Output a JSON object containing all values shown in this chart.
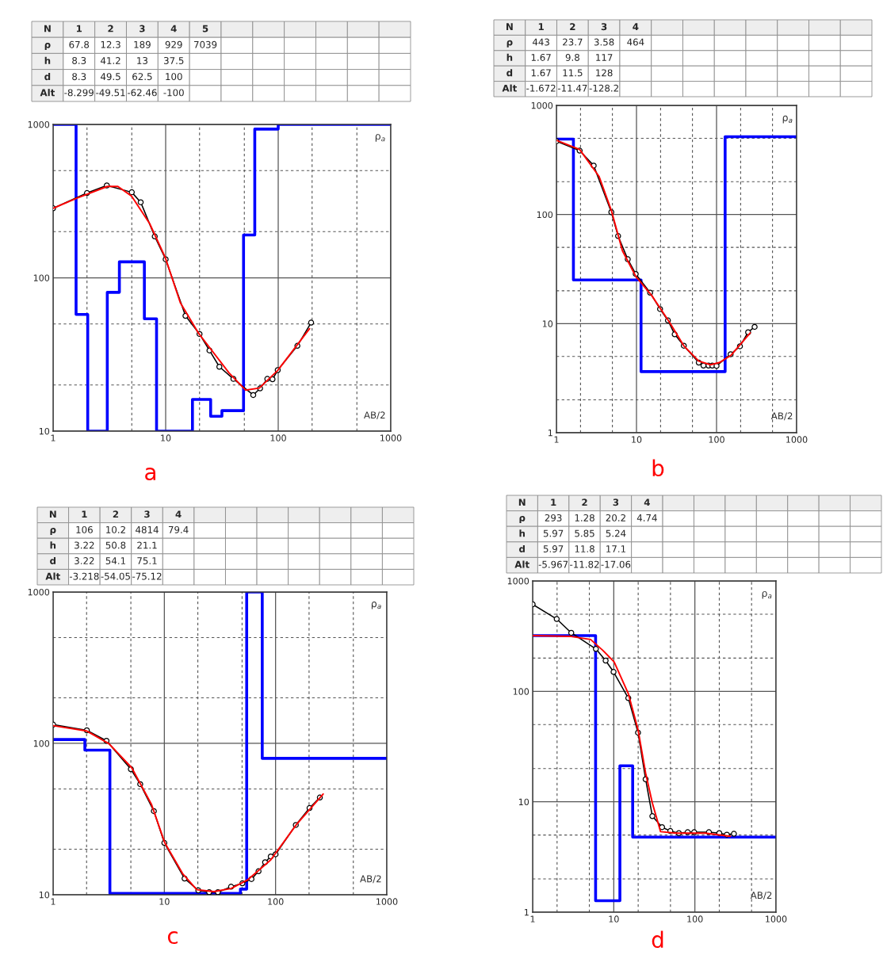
{
  "chart_data": [
    {
      "type": "line",
      "log": "xy",
      "grid": true,
      "xlabel": "AB/2",
      "ylabel": "ρ$_{a}$",
      "xlim": [
        1,
        1000
      ],
      "ylim": [
        10,
        1000
      ],
      "xticks": [
        1,
        10,
        100,
        1000
      ],
      "yticks": [
        10,
        100,
        1000
      ],
      "annotations": [
        "N 1 2 3 4 5",
        "ρ 67.8 12.3 189 929 7039",
        "h 8.3 41.2 13 37.5",
        "d 8.3 49.5 62.5 100",
        "Alt -8.299 -49.51 -62.46 -100",
        "a"
      ],
      "series": [
        {
          "type": "step",
          "color": "#0000ff",
          "x": [
            1,
            1.6,
            2.03,
            3.03,
            3.88,
            6.47,
            8.3,
            11.9,
            17.3,
            25.1,
            31.6,
            49.2,
            61.9,
            100,
            1000
          ],
          "values": [
            1000,
            57.7,
            10,
            80.4,
            127,
            54,
            10,
            10,
            16.1,
            12.5,
            13.6,
            190,
            933,
            1000,
            1000
          ]
        },
        {
          "type": "line",
          "color": "#000000",
          "marker": "circle",
          "x": [
            1,
            2,
            3,
            5,
            6,
            8,
            10,
            15,
            20,
            24.5,
            30,
            40,
            60,
            69,
            80,
            89,
            99,
            148,
            196
          ],
          "values": [
            284,
            357,
            400,
            361,
            311,
            186,
            132,
            56.5,
            43,
            33.6,
            26.3,
            21.9,
            17.2,
            19,
            21.9,
            21.8,
            25,
            36,
            51
          ]
        },
        {
          "type": "line",
          "color": "#ff0000",
          "x": [
            1,
            1.62,
            3.03,
            3.76,
            4.98,
            7.2,
            9.9,
            13.5,
            19.6,
            36.5,
            51.4,
            68,
            99,
            190
          ],
          "values": [
            284,
            330,
            394,
            394,
            341,
            226,
            136,
            68.7,
            43.5,
            24,
            18.5,
            19.1,
            24.9,
            46.6
          ]
        }
      ]
    },
    {
      "type": "line",
      "log": "xy",
      "grid": true,
      "xlabel": "AB/2",
      "ylabel": "ρ$_{a}$",
      "xlim": [
        1,
        1000
      ],
      "ylim": [
        1,
        1000
      ],
      "xticks": [
        1,
        10,
        100,
        1000
      ],
      "yticks": [
        1,
        10,
        100,
        1000
      ],
      "annotations": [
        "N 1 2 3 4",
        "ρ 443 23.7 3.58 464",
        "h 1.67 9.8 117",
        "d 1.67 11.5 128",
        "Alt -1.672 -11.47 -128.2",
        "b"
      ],
      "series": [
        {
          "type": "step",
          "color": "#0000ff",
          "x": [
            1,
            1.63,
            11.4,
            128,
            1000
          ],
          "values": [
            491,
            25.1,
            3.63,
            517,
            517
          ]
        },
        {
          "type": "line",
          "color": "#000000",
          "marker": "circle",
          "x": [
            1,
            1.95,
            2.92,
            4.85,
            5.89,
            7.78,
            9.78,
            14.8,
            19.7,
            24.7,
            30,
            39,
            60,
            68.7,
            79.4,
            88.5,
            100,
            150,
            196,
            248,
            299
          ],
          "values": [
            470,
            385,
            281,
            105,
            63.5,
            38.9,
            28.5,
            19.2,
            13.6,
            10.7,
            7.98,
            6.28,
            4.39,
            4.12,
            4.12,
            4.12,
            4.1,
            5.24,
            6.2,
            8.33,
            9.34
          ]
        },
        {
          "type": "line",
          "color": "#ff0000",
          "x": [
            1.02,
            1.95,
            3.4,
            4.85,
            6.68,
            9.78,
            15.5,
            25.8,
            39.4,
            60,
            84,
            108,
            152,
            263
          ],
          "values": [
            476,
            394,
            224,
            109,
            46.5,
            27.2,
            18.1,
            10.3,
            6.2,
            4.53,
            4.2,
            4.39,
            5.13,
            8.22
          ]
        }
      ]
    },
    {
      "type": "line",
      "log": "xy",
      "grid": true,
      "xlabel": "AB/2",
      "ylabel": "ρ$_{a}$",
      "xlim": [
        1,
        1000
      ],
      "ylim": [
        10,
        1000
      ],
      "xticks": [
        1,
        10,
        100,
        1000
      ],
      "yticks": [
        10,
        100,
        1000
      ],
      "annotations": [
        "N 1 2 3 4",
        "ρ 106 10.2 4814 79.4",
        "h 3.22 50.8 21.1",
        "d 3.22 54.1 75.1",
        "Alt -3.218 -54.05 -75.12",
        "c"
      ],
      "series": [
        {
          "type": "step",
          "color": "#0000ff",
          "x": [
            1,
            1.93,
            3.24,
            48.3,
            55,
            75.9,
            1000
          ],
          "values": [
            106,
            90.2,
            10.2,
            10.9,
            1000,
            79.6,
            79.6
          ]
        },
        {
          "type": "line",
          "color": "#000000",
          "marker": "circle",
          "x": [
            1,
            2.01,
            3.02,
            5,
            6.07,
            8.05,
            10,
            15.2,
            20.2,
            25.3,
            30.3,
            39.8,
            50.3,
            60.7,
            70.3,
            80.5,
            90.5,
            100,
            152,
            202,
            250
          ],
          "values": [
            133,
            122,
            104,
            67.6,
            53.8,
            35.7,
            22,
            12.8,
            10.7,
            10.4,
            10.4,
            11.3,
            11.9,
            12.7,
            14.3,
            16.4,
            17.9,
            18.5,
            28.9,
            37.4,
            43.9
          ]
        },
        {
          "type": "line",
          "color": "#ff0000",
          "x": [
            1,
            1.99,
            3.18,
            5.09,
            7.68,
            10.1,
            14.7,
            19.6,
            27.9,
            39.8,
            56.6,
            90.5,
            154,
            268
          ],
          "values": [
            131,
            121,
            99.5,
            69,
            39.4,
            22,
            13.7,
            10.8,
            10.5,
            11,
            12.6,
            17,
            29.1,
            46.3
          ]
        }
      ]
    },
    {
      "type": "line",
      "log": "xy",
      "grid": true,
      "xlabel": "AB/2",
      "ylabel": "ρ$_{a}$",
      "xlim": [
        1,
        1000
      ],
      "ylim": [
        1,
        1000
      ],
      "xticks": [
        1,
        10,
        100,
        1000
      ],
      "yticks": [
        1,
        10,
        100,
        1000
      ],
      "annotations": [
        "N 1 2 3 4",
        "ρ 293 1.28 20.2 4.74",
        "h 5.97 5.85 5.24",
        "d 5.97 11.8 17.1",
        "Alt -5.967 -11.82 -17.06",
        "d"
      ],
      "series": [
        {
          "type": "step",
          "color": "#0000ff",
          "x": [
            1,
            5.97,
            11.9,
            17.1,
            1000
          ],
          "values": [
            320,
            1.27,
            21.2,
            4.79,
            4.79
          ]
        },
        {
          "type": "line",
          "color": "#000000",
          "marker": "circle",
          "x": [
            1,
            1.98,
            2.99,
            6.02,
            7.94,
            9.94,
            15.1,
            19.9,
            24.7,
            29.9,
            39.4,
            49.8,
            63.5,
            81.5,
            98,
            149,
            200,
            248,
            303
          ],
          "values": [
            614,
            452,
            339,
            242,
            190,
            150,
            86.9,
            42.3,
            16,
            7.41,
            5.89,
            5.43,
            5.2,
            5.3,
            5.3,
            5.3,
            5.2,
            5.04,
            5.13
          ]
        },
        {
          "type": "line",
          "color": "#ff0000",
          "x": [
            1,
            2.99,
            5.18,
            7.24,
            10.1,
            15.1,
            19.9,
            24.7,
            29.9,
            37.8,
            58.4,
            135,
            274
          ],
          "values": [
            320,
            314,
            295,
            237,
            185,
            95.5,
            45.1,
            18.2,
            9.73,
            5.36,
            5.2,
            5.2,
            4.87
          ]
        }
      ]
    }
  ]
}
